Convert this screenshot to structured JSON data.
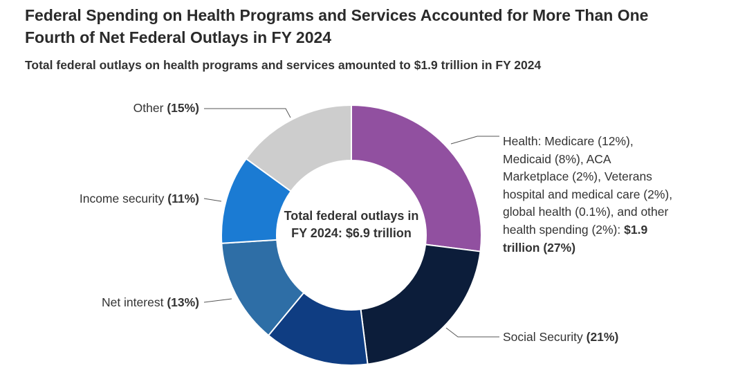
{
  "chart_data": {
    "type": "donut",
    "title": "Federal Spending on Health Programs and Services Accounted for More Than One Fourth of Net Federal Outlays in FY 2024",
    "subtitle": "Total federal outlays on health programs and services amounted to $1.9 trillion in FY 2024",
    "center_label": "Total federal outlays in FY 2024: $6.9 trillion",
    "health_amount": "$1.9 trillion",
    "categories": [
      "Health: Medicare (12%), Medicaid (8%), ACA Marketplace (2%), Veterans hospital and medical care (2%), global health (0.1%), and other health spending (2%):",
      "Social Security",
      null,
      "Net interest",
      "Income security",
      "Other"
    ],
    "values": [
      27,
      21,
      13,
      13,
      11,
      15
    ],
    "value_labels": [
      "(27%)",
      "(21%)",
      null,
      "(13%)",
      "(11%)",
      "(15%)"
    ],
    "colors": [
      "#9150a0",
      "#0c1d3a",
      "#0f3d82",
      "#2e6ea6",
      "#1b7bd3",
      "#cdcdcd"
    ]
  }
}
